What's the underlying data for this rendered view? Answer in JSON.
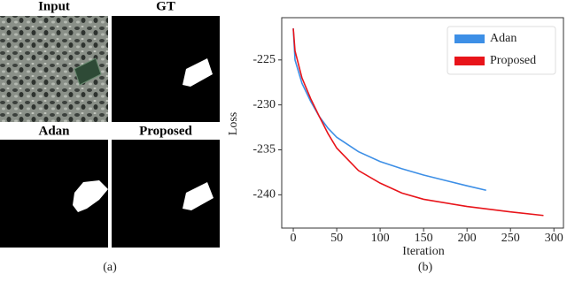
{
  "panels": [
    {
      "label": "Input"
    },
    {
      "label": "GT"
    },
    {
      "label": "Adan"
    },
    {
      "label": "Proposed"
    }
  ],
  "captions": [
    "(a)",
    "(b)"
  ],
  "chart_data": {
    "type": "line",
    "xlabel": "Iteration",
    "ylabel": "Loss",
    "xlim": [
      -13.3,
      312
    ],
    "ylim": [
      -243.7,
      -220.3
    ],
    "xticks": [
      0,
      50,
      100,
      150,
      200,
      250,
      300
    ],
    "yticks": [
      -225,
      -230,
      -235,
      -240
    ],
    "grid": false,
    "legend": "upper right",
    "series": [
      {
        "name": "Adan",
        "color": "#3d8fe6",
        "x": [
          0,
          2,
          10,
          20,
          30,
          40,
          50,
          75,
          100,
          125,
          150,
          175,
          200,
          222
        ],
        "values": [
          -221.5,
          -225,
          -227.6,
          -229.6,
          -231.3,
          -232.6,
          -233.6,
          -235.2,
          -236.3,
          -237.1,
          -237.8,
          -238.4,
          -239.0,
          -239.5
        ]
      },
      {
        "name": "Proposed",
        "color": "#e8141a",
        "x": [
          0,
          2,
          10,
          20,
          30,
          40,
          50,
          75,
          100,
          125,
          150,
          200,
          250,
          288
        ],
        "values": [
          -221.5,
          -224,
          -227,
          -229.3,
          -231.3,
          -233.2,
          -234.8,
          -237.3,
          -238.7,
          -239.8,
          -240.5,
          -241.3,
          -241.9,
          -242.3
        ]
      }
    ]
  }
}
